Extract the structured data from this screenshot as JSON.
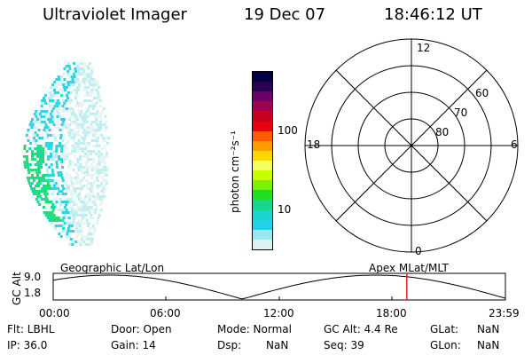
{
  "header": {
    "instrument": "Ultraviolet Imager",
    "date": "19 Dec 07",
    "time": "18:46:12 UT"
  },
  "colorbar": {
    "label": "photon cm⁻²s⁻¹",
    "ticks": [
      "100",
      "10"
    ],
    "colors": [
      "#000044",
      "#2a0050",
      "#6a006a",
      "#a00050",
      "#c80020",
      "#e80010",
      "#ff5a00",
      "#ff9a00",
      "#ffd400",
      "#f6ff60",
      "#c8ff00",
      "#7af200",
      "#22dd22",
      "#17d88a",
      "#1ad6c8",
      "#22d0e8",
      "#9ee6ee",
      "#ddf2f4"
    ]
  },
  "polar": {
    "mlt_labels": [
      "12",
      "18",
      "6",
      "0"
    ],
    "lat_labels": [
      "60",
      "70",
      "80"
    ]
  },
  "timeline": {
    "y_label": "GC Alt",
    "y_ticks": [
      "9.0",
      "1.8"
    ],
    "left_title": "Geographic Lat/Lon",
    "right_title": "Apex  MLat/MLT",
    "x_ticks": [
      "00:00",
      "06:00",
      "12:00",
      "18:00",
      "23:59"
    ],
    "current_time_fraction": 0.782
  },
  "status": {
    "flt": "Flt: LBHL",
    "ip": "IP: 36.0",
    "door": "Door: Open",
    "gain": "Gain: 14",
    "mode": "Mode: Normal",
    "dsp_label": "Dsp:",
    "dsp_value": "NaN",
    "gc_alt": "GC Alt: 4.4 Re",
    "seq": "Seq: 39",
    "glat_label": "GLat:",
    "glat_value": "NaN",
    "glon_label": "GLon:",
    "glon_value": "NaN"
  }
}
